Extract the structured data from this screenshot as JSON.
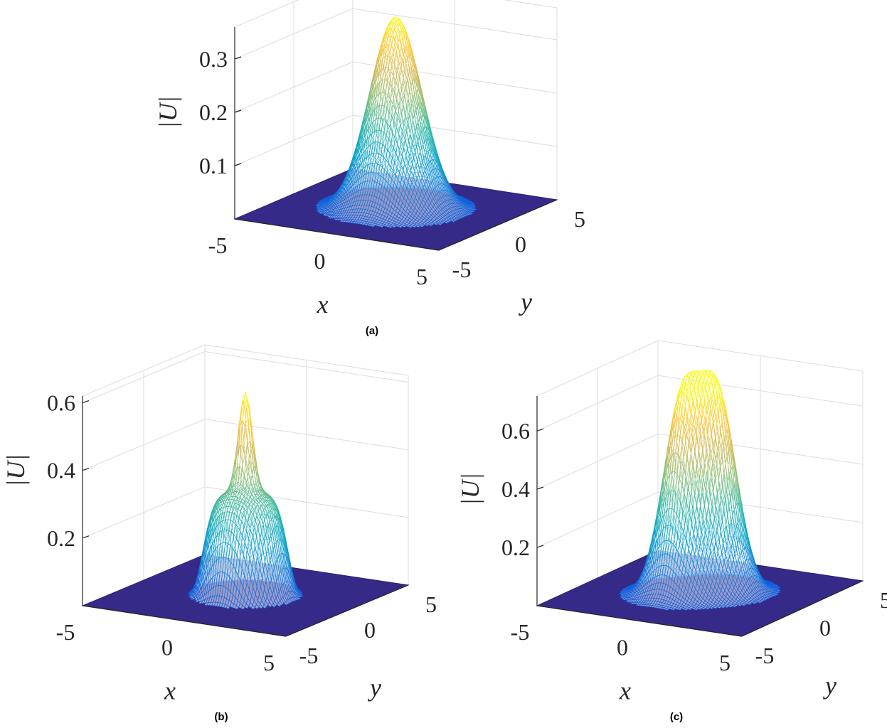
{
  "chart_data": [
    {
      "type": "surface",
      "caption": "(a)",
      "xlabel": "x",
      "ylabel": "y",
      "zlabel": "|U|",
      "xticks": [
        "-5",
        "0",
        "5"
      ],
      "yticks": [
        "-5",
        "0",
        "5"
      ],
      "zticks": [
        "0.1",
        "0.2",
        "0.3"
      ],
      "xlim": [
        -5,
        5
      ],
      "ylim": [
        -5,
        5
      ],
      "zmax": 0.36,
      "profile": "gaussian",
      "peak": 0.36,
      "colormap": [
        "#352a87",
        "#0f5cdd",
        "#1481d6",
        "#06a4ca",
        "#2eb7a4",
        "#87bf77",
        "#d1bb59",
        "#fec832",
        "#f9fb0e"
      ]
    },
    {
      "type": "surface",
      "caption": "(b)",
      "xlabel": "x",
      "ylabel": "y",
      "zlabel": "|U|",
      "xticks": [
        "-5",
        "0",
        "5"
      ],
      "yticks": [
        "-5",
        "0",
        "5"
      ],
      "zticks": [
        "0.2",
        "0.4",
        "0.6"
      ],
      "xlim": [
        -5,
        5
      ],
      "ylim": [
        -5,
        5
      ],
      "zmax": 0.62,
      "profile": "ring-with-central-peak",
      "peak": 0.6,
      "colormap": [
        "#352a87",
        "#0f5cdd",
        "#1481d6",
        "#06a4ca",
        "#2eb7a4",
        "#87bf77",
        "#d1bb59",
        "#fec832",
        "#f9fb0e"
      ]
    },
    {
      "type": "surface",
      "caption": "(c)",
      "xlabel": "x",
      "ylabel": "y",
      "zlabel": "|U|",
      "xticks": [
        "-5",
        "0",
        "5"
      ],
      "yticks": [
        "-5",
        "0",
        "5"
      ],
      "zticks": [
        "0.2",
        "0.4",
        "0.6"
      ],
      "xlim": [
        -5,
        5
      ],
      "ylim": [
        -5,
        5
      ],
      "zmax": 0.72,
      "profile": "double-peak",
      "peak": 0.7,
      "colormap": [
        "#352a87",
        "#0f5cdd",
        "#1481d6",
        "#06a4ca",
        "#2eb7a4",
        "#87bf77",
        "#d1bb59",
        "#fec832",
        "#f9fb0e"
      ]
    }
  ]
}
